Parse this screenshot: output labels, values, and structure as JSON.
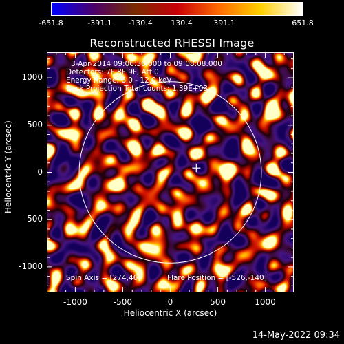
{
  "colorbar": {
    "tick_labels": [
      "-651.8",
      "-391.1",
      "-130.4",
      "130.4",
      "391.1",
      "651.8"
    ],
    "colors": [
      "#0000ff",
      "#4b006b",
      "#7a2b00",
      "#c8000a",
      "#ff6a00",
      "#ffd000",
      "#ffffff"
    ]
  },
  "title": "Reconstructed RHESSI Image",
  "annotations": {
    "time_range": "3-Apr-2014 09:06:36.000 to 09:08:08.000",
    "detectors": "Detectors: 7F 8F 9F, Att 0",
    "energy_range": "Energy Range: 6.0 - 12.0 keV",
    "method_and_counts": "Back Projection    Total counts: 1.39E+03",
    "spin_axis": "Spin Axis = [274,46]",
    "flare_position": "Flare Position = [-526,-140]"
  },
  "axes": {
    "xlabel": "Heliocentric X (arcsec)",
    "ylabel": "Heliocentric Y (arcsec)",
    "x_ticks": [
      "-1000",
      "-500",
      "0",
      "500",
      "1000"
    ],
    "y_ticks": [
      "1000",
      "500",
      "0",
      "-500",
      "-1000"
    ],
    "x_tick_values": [
      -1000,
      -500,
      0,
      500,
      1000
    ],
    "y_tick_values": [
      1000,
      500,
      0,
      -500,
      -1000
    ],
    "xlim": [
      -1300,
      1300
    ],
    "ylim": [
      -1270,
      1270
    ]
  },
  "footer": {
    "timestamp": "14-May-2022 09:34"
  },
  "markers": {
    "solar_limb": "white-circle",
    "spin_axis_cross": "plus-marker"
  }
}
